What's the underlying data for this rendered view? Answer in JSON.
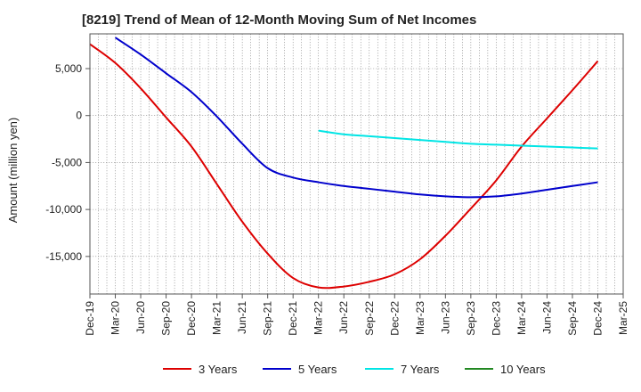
{
  "chart_data": {
    "type": "line",
    "title": "[8219]  Trend of Mean of 12-Month Moving Sum of Net Incomes",
    "ylabel": "Amount (million yen)",
    "xlabel": "",
    "x": [
      "Dec-19",
      "Mar-20",
      "Jun-20",
      "Sep-20",
      "Dec-20",
      "Mar-21",
      "Jun-21",
      "Sep-21",
      "Dec-21",
      "Mar-22",
      "Jun-22",
      "Sep-22",
      "Dec-22",
      "Mar-23",
      "Jun-23",
      "Sep-23",
      "Dec-23",
      "Mar-24",
      "Jun-24",
      "Sep-24",
      "Dec-24",
      "Mar-25"
    ],
    "yticks": [
      5000,
      0,
      -5000,
      -10000,
      -15000
    ],
    "ytick_labels": [
      "5,000",
      "0",
      "-5,000",
      "-10,000",
      "-15,000"
    ],
    "ylim": [
      -19000,
      8700
    ],
    "grid": true,
    "legend_position": "bottom",
    "series": [
      {
        "name": "3 Years",
        "color": "#dd0000",
        "points": [
          {
            "x": "Dec-19",
            "y": 7600
          },
          {
            "x": "Mar-20",
            "y": 5600
          },
          {
            "x": "Jun-20",
            "y": 2900
          },
          {
            "x": "Sep-20",
            "y": -200
          },
          {
            "x": "Dec-20",
            "y": -3300
          },
          {
            "x": "Mar-21",
            "y": -7300
          },
          {
            "x": "Jun-21",
            "y": -11300
          },
          {
            "x": "Sep-21",
            "y": -14700
          },
          {
            "x": "Dec-21",
            "y": -17300
          },
          {
            "x": "Mar-22",
            "y": -18300
          },
          {
            "x": "Jun-22",
            "y": -18200
          },
          {
            "x": "Sep-22",
            "y": -17700
          },
          {
            "x": "Dec-22",
            "y": -16900
          },
          {
            "x": "Mar-23",
            "y": -15300
          },
          {
            "x": "Jun-23",
            "y": -12800
          },
          {
            "x": "Sep-23",
            "y": -9900
          },
          {
            "x": "Dec-23",
            "y": -6900
          },
          {
            "x": "Mar-24",
            "y": -3300
          },
          {
            "x": "Jun-24",
            "y": -300
          },
          {
            "x": "Sep-24",
            "y": 2700
          },
          {
            "x": "Dec-24",
            "y": 5800
          }
        ]
      },
      {
        "name": "5 Years",
        "color": "#0000cc",
        "points": [
          {
            "x": "Mar-20",
            "y": 8300
          },
          {
            "x": "Jun-20",
            "y": 6500
          },
          {
            "x": "Sep-20",
            "y": 4500
          },
          {
            "x": "Dec-20",
            "y": 2500
          },
          {
            "x": "Mar-21",
            "y": -100
          },
          {
            "x": "Jun-21",
            "y": -3000
          },
          {
            "x": "Sep-21",
            "y": -5600
          },
          {
            "x": "Dec-21",
            "y": -6600
          },
          {
            "x": "Mar-22",
            "y": -7100
          },
          {
            "x": "Jun-22",
            "y": -7500
          },
          {
            "x": "Sep-22",
            "y": -7800
          },
          {
            "x": "Dec-22",
            "y": -8100
          },
          {
            "x": "Mar-23",
            "y": -8400
          },
          {
            "x": "Jun-23",
            "y": -8600
          },
          {
            "x": "Sep-23",
            "y": -8700
          },
          {
            "x": "Dec-23",
            "y": -8600
          },
          {
            "x": "Mar-24",
            "y": -8300
          },
          {
            "x": "Jun-24",
            "y": -7900
          },
          {
            "x": "Sep-24",
            "y": -7500
          },
          {
            "x": "Dec-24",
            "y": -7100
          }
        ]
      },
      {
        "name": "7 Years",
        "color": "#00e5e5",
        "points": [
          {
            "x": "Mar-22",
            "y": -1600
          },
          {
            "x": "Jun-22",
            "y": -2000
          },
          {
            "x": "Sep-22",
            "y": -2200
          },
          {
            "x": "Dec-22",
            "y": -2400
          },
          {
            "x": "Mar-23",
            "y": -2600
          },
          {
            "x": "Jun-23",
            "y": -2800
          },
          {
            "x": "Sep-23",
            "y": -3000
          },
          {
            "x": "Dec-23",
            "y": -3100
          },
          {
            "x": "Mar-24",
            "y": -3200
          },
          {
            "x": "Jun-24",
            "y": -3300
          },
          {
            "x": "Sep-24",
            "y": -3400
          },
          {
            "x": "Dec-24",
            "y": -3500
          }
        ]
      },
      {
        "name": "10 Years",
        "color": "#228822",
        "points": []
      }
    ]
  }
}
